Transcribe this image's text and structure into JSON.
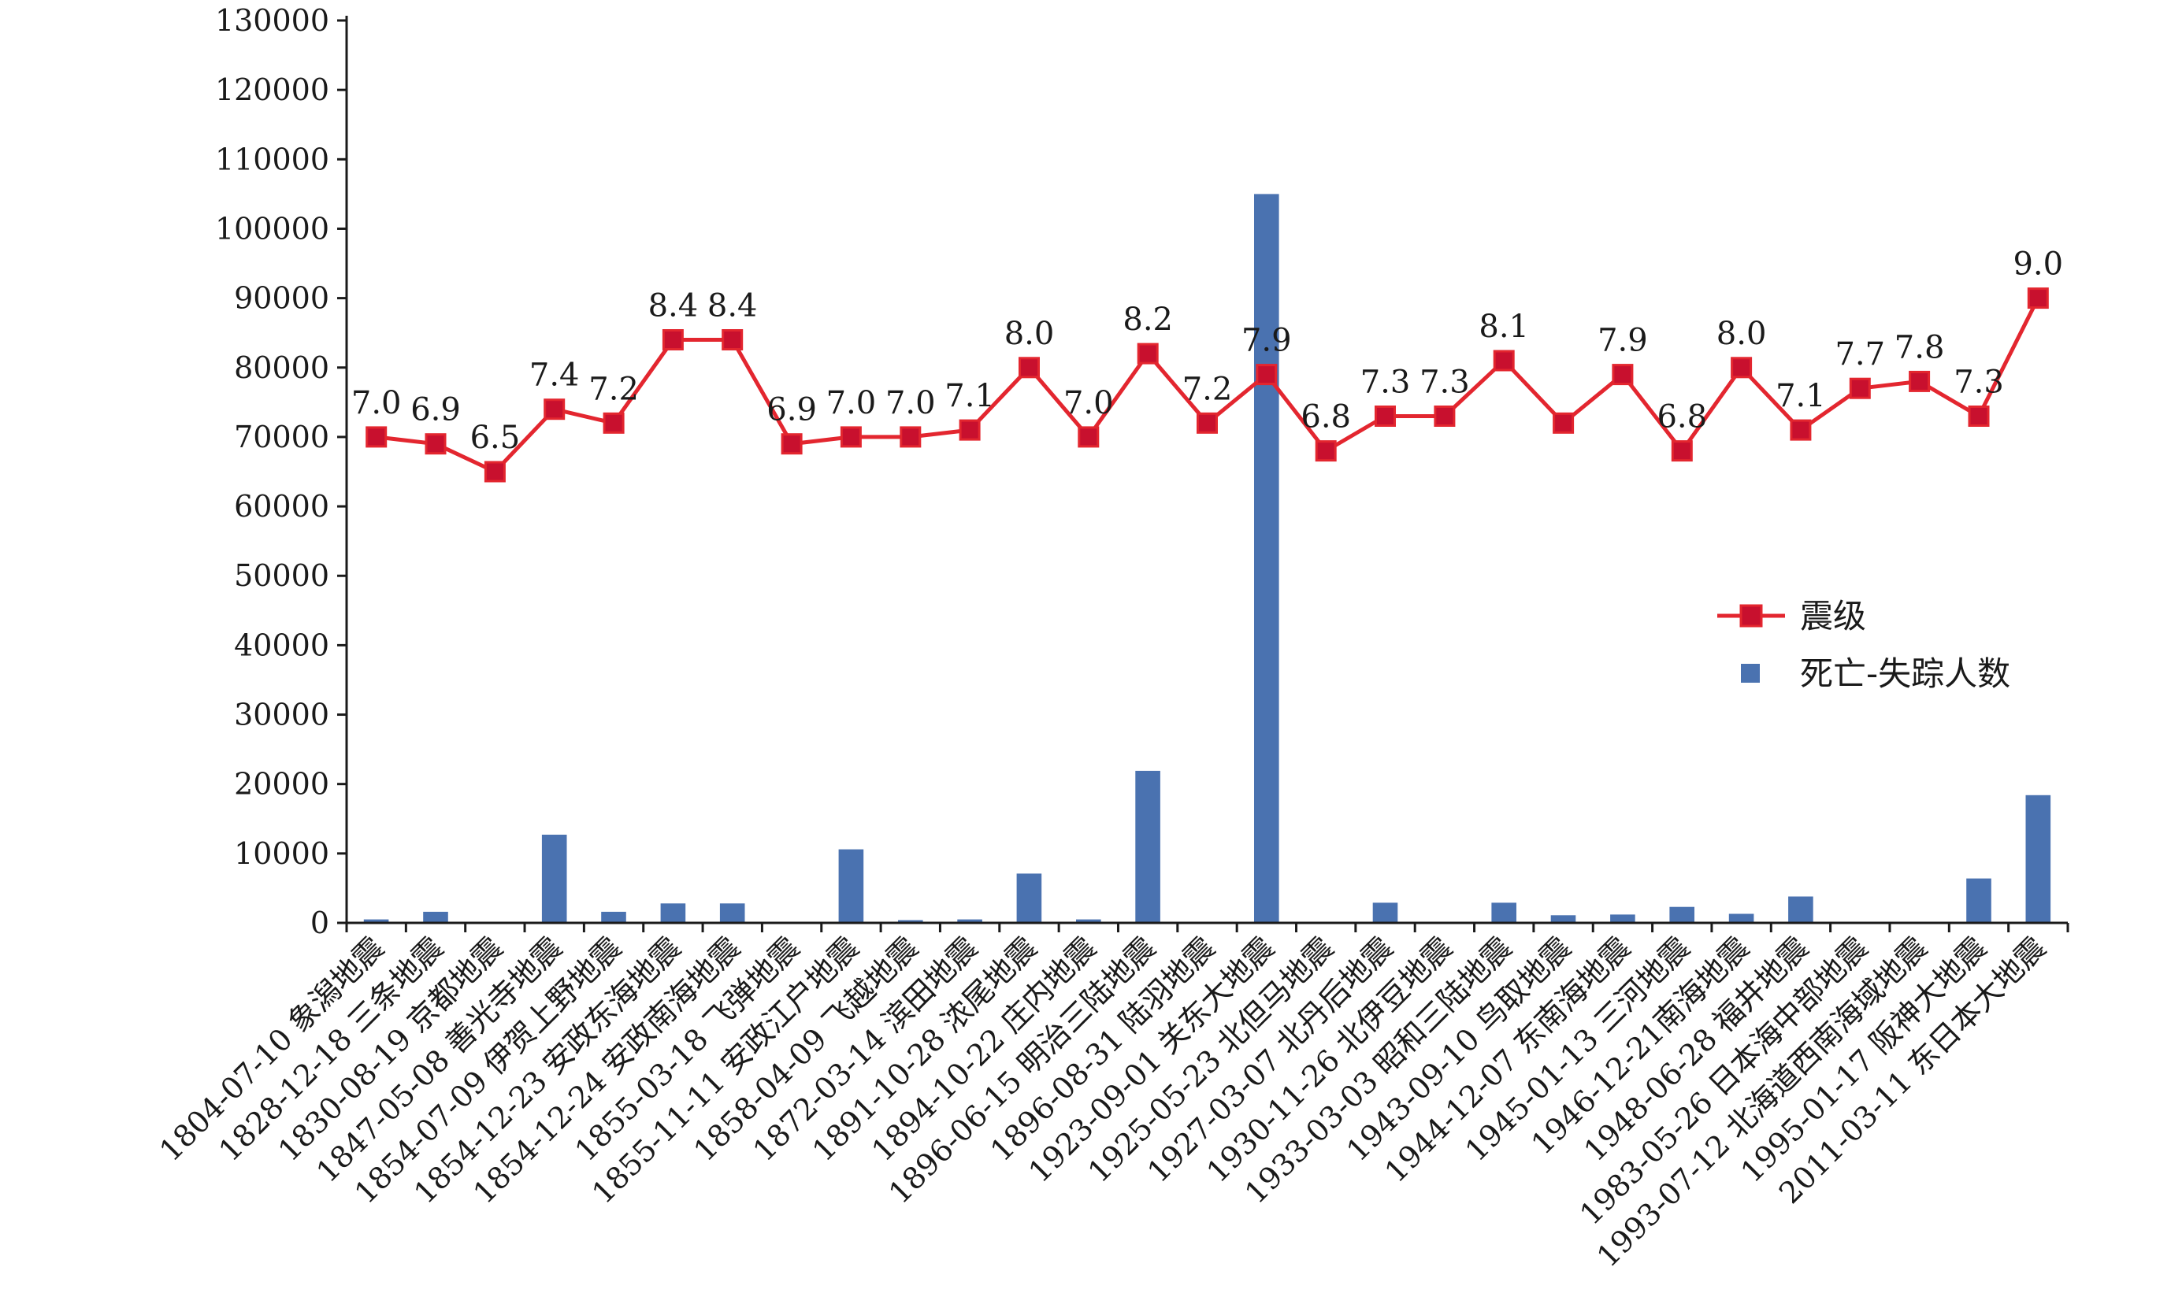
{
  "chart_data": {
    "type": "bar+line",
    "categories": [
      "1804-07-10 象潟地震",
      "1828-12-18 三条地震",
      "1830-08-19 京都地震",
      "1847-05-08 善光寺地震",
      "1854-07-09 伊贺上野地震",
      "1854-12-23 安政东海地震",
      "1854-12-24 安政南海地震",
      "1855-03-18 飞弹地震",
      "1855-11-11 安政江户地震",
      "1858-04-09 飞越地震",
      "1872-03-14 滨田地震",
      "1891-10-28 浓尾地震",
      "1894-10-22 庄内地震",
      "1896-06-15 明治三陆地震",
      "1896-08-31 陆羽地震",
      "1923-09-01 关东大地震",
      "1925-05-23 北但马地震",
      "1927-03-07 北丹后地震",
      "1930-11-26 北伊豆地震",
      "1933-03-03 昭和三陆地震",
      "1943-09-10 鸟取地震",
      "1944-12-07 东南海地震",
      "1945-01-13 三河地震",
      "1946-12-21南海地震",
      "1948-06-28 福井地震",
      "1983-05-26 日本海中部地震",
      "1993-07-12 北海道西南海域地震",
      "1995-01-17 阪神大地震",
      "2011-03-11 东日本大地震"
    ],
    "series": [
      {
        "name": "震级",
        "kind": "line",
        "color": "#e3262f",
        "marker_color": "#c8102e",
        "values": [
          7.0,
          6.9,
          6.5,
          7.4,
          7.2,
          8.4,
          8.4,
          6.9,
          7.0,
          7.0,
          7.1,
          8.0,
          7.0,
          8.2,
          7.2,
          7.9,
          6.8,
          7.3,
          7.3,
          8.1,
          7.2,
          7.9,
          6.8,
          8.0,
          7.1,
          7.7,
          7.8,
          7.3,
          9.0
        ],
        "data_labels": [
          "7.0",
          "6.9",
          "6.5",
          "7.4",
          "7.2",
          "8.4",
          "8.4",
          "6.9",
          "7.0",
          "7.0",
          "7.1",
          "8.0",
          "7.0",
          "8.2",
          "7.2",
          "7.9",
          "6.8",
          "7.3",
          "7.3",
          "8.1",
          "",
          "7.9",
          "6.8",
          "8.0",
          "7.1",
          "7.7",
          "7.8",
          "7.3",
          "9.0"
        ]
      },
      {
        "name": "死亡-失踪人数",
        "kind": "bar",
        "color": "#4a72b0",
        "values": [
          500,
          1600,
          0,
          12700,
          1600,
          2800,
          2800,
          0,
          10600,
          400,
          500,
          7100,
          500,
          21900,
          0,
          105000,
          0,
          2900,
          0,
          2900,
          1100,
          1200,
          2300,
          1300,
          3800,
          100,
          0,
          6400,
          18400
        ]
      }
    ],
    "y_axis": {
      "min": 0,
      "max": 130000,
      "ticks": [
        "0",
        "10000",
        "20000",
        "30000",
        "40000",
        "50000",
        "60000",
        "70000",
        "80000",
        "90000",
        "100000",
        "110000",
        "120000",
        "130000"
      ]
    },
    "grid": false,
    "legend": {
      "position": "right",
      "entries": [
        "震级",
        "死亡-失踪人数"
      ]
    }
  }
}
